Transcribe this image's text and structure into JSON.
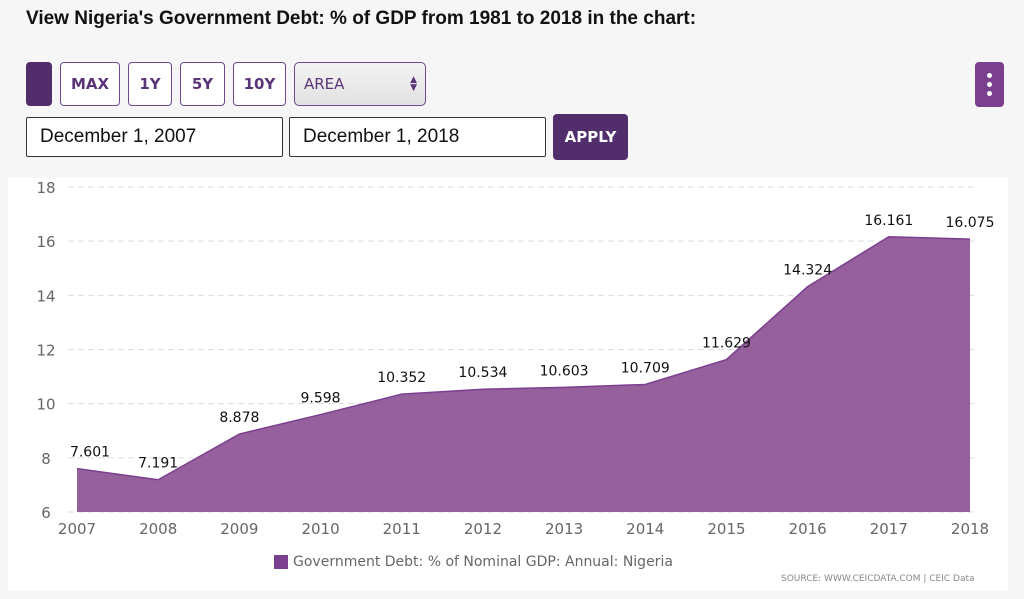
{
  "page": {
    "title": "View Nigeria's Government Debt: % of GDP from 1981 to 2018 in the chart:"
  },
  "toolbar": {
    "range_buttons": [
      "MAX",
      "1Y",
      "5Y",
      "10Y"
    ],
    "chart_type": "AREA",
    "start_date": "December 1, 2007",
    "end_date": "December 1, 2018",
    "apply_label": "APPLY"
  },
  "colors": {
    "accent": "#512e6b",
    "area_fill": "#95609c",
    "line": "#7b3f8f"
  },
  "legend": {
    "label": "Government Debt: % of Nominal GDP: Annual: Nigeria"
  },
  "source": "SOURCE: WWW.CEICDATA.COM | CEIC Data",
  "chart_data": {
    "type": "area",
    "title": "",
    "xlabel": "",
    "ylabel": "",
    "categories": [
      "2007",
      "2008",
      "2009",
      "2010",
      "2011",
      "2012",
      "2013",
      "2014",
      "2015",
      "2016",
      "2017",
      "2018"
    ],
    "series": [
      {
        "name": "Government Debt: % of Nominal GDP: Annual: Nigeria",
        "values": [
          7.601,
          7.191,
          8.878,
          9.598,
          10.352,
          10.534,
          10.603,
          10.709,
          11.629,
          14.324,
          16.161,
          16.075
        ],
        "labels": [
          "7.601",
          "7.191",
          "8.878",
          "9.598",
          "10.352",
          "10.534",
          "10.603",
          "10.709",
          "11.629",
          "14.324",
          "16.161",
          "16.075"
        ]
      }
    ],
    "ylim": [
      6,
      18
    ],
    "yticks": [
      "6",
      "8",
      "10",
      "12",
      "14",
      "16",
      "18"
    ],
    "grid": true,
    "legend_position": "bottom"
  }
}
